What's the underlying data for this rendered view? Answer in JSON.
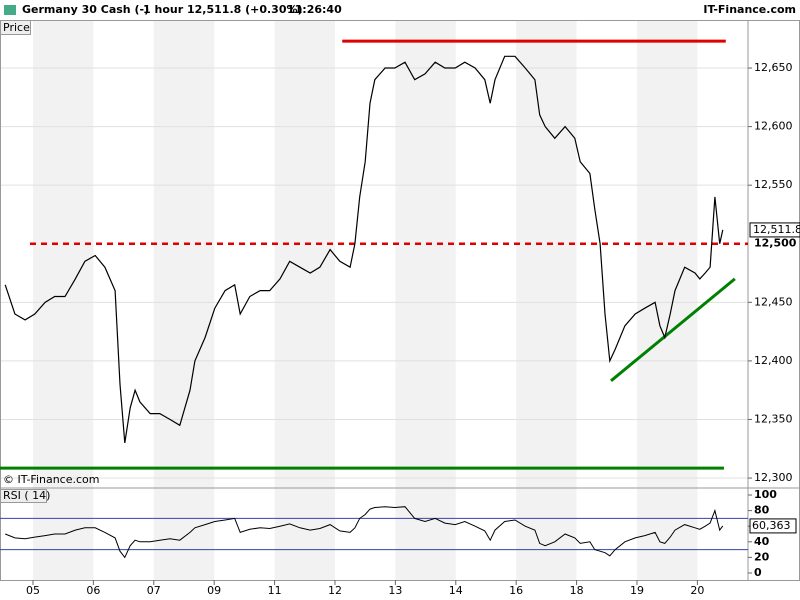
{
  "header": {
    "title": "Germany 30 Cash (-)",
    "interval": "1 hour",
    "quote": "12,511.8 (+0.30%)",
    "time": "11:26:40",
    "brand": "IT-Finance.com",
    "price_label": "Price",
    "copyright": "© IT-Finance.com"
  },
  "chart_data": [
    {
      "type": "line",
      "color": "#000000",
      "grid": true,
      "x": [
        -0.46,
        -0.3,
        -0.13,
        0.03,
        0.2,
        0.36,
        0.53,
        0.7,
        0.86,
        1.03,
        1.19,
        1.36,
        1.44,
        1.52,
        1.61,
        1.69,
        1.77,
        1.94,
        2.1,
        2.27,
        2.43,
        2.6,
        2.68,
        2.85,
        3.01,
        3.18,
        3.34,
        3.43,
        3.59,
        3.76,
        3.92,
        4.09,
        4.25,
        4.42,
        4.59,
        4.75,
        4.92,
        5.08,
        5.25,
        5.33,
        5.41,
        5.5,
        5.58,
        5.66,
        5.83,
        5.99,
        6.16,
        6.32,
        6.49,
        6.66,
        6.82,
        6.99,
        7.15,
        7.32,
        7.48,
        7.57,
        7.65,
        7.81,
        7.98,
        8.15,
        8.31,
        8.39,
        8.48,
        8.64,
        8.81,
        8.97,
        9.06,
        9.22,
        9.3,
        9.39,
        9.47,
        9.55,
        9.64,
        9.8,
        9.97,
        10.13,
        10.3,
        10.38,
        10.46,
        10.55,
        10.63,
        10.79,
        10.96,
        11.04,
        11.13,
        11.21,
        11.29,
        11.37,
        11.42
      ],
      "values": [
        12465,
        12440,
        12435,
        12440,
        12450,
        12455,
        12455,
        12470,
        12485,
        12490,
        12480,
        12460,
        12380,
        12330,
        12360,
        12375,
        12365,
        12355,
        12355,
        12350,
        12345,
        12375,
        12400,
        12420,
        12445,
        12460,
        12465,
        12440,
        12455,
        12460,
        12460,
        12470,
        12485,
        12480,
        12475,
        12480,
        12495,
        12485,
        12480,
        12500,
        12540,
        12570,
        12620,
        12640,
        12650,
        12650,
        12655,
        12640,
        12645,
        12655,
        12650,
        12650,
        12655,
        12650,
        12640,
        12620,
        12640,
        12660,
        12660,
        12650,
        12640,
        12610,
        12600,
        12590,
        12600,
        12590,
        12570,
        12560,
        12530,
        12500,
        12440,
        12400,
        12410,
        12430,
        12440,
        12445,
        12450,
        12430,
        12420,
        12440,
        12460,
        12480,
        12475,
        12470,
        12475,
        12480,
        12540,
        12500,
        12511.8
      ],
      "xlim": [
        -0.546,
        11.838
      ],
      "xticks": [
        {
          "value": 0,
          "label": "05"
        },
        {
          "value": 1,
          "label": "06"
        },
        {
          "value": 2,
          "label": "07"
        },
        {
          "value": 3,
          "label": "09"
        },
        {
          "value": 4,
          "label": "11"
        },
        {
          "value": 5,
          "label": "12"
        },
        {
          "value": 6,
          "label": "13"
        },
        {
          "value": 7,
          "label": "14"
        },
        {
          "value": 8,
          "label": "16"
        },
        {
          "value": 9,
          "label": "18"
        },
        {
          "value": 10,
          "label": "19"
        },
        {
          "value": 11,
          "label": "20"
        }
      ],
      "ylim": [
        12291.5,
        12691
      ],
      "yticks": [
        {
          "value": 12300,
          "label": "12,300"
        },
        {
          "value": 12350,
          "label": "12,350"
        },
        {
          "value": 12400,
          "label": "12,400"
        },
        {
          "value": 12450,
          "label": "12,450"
        },
        {
          "value": 12550,
          "label": "12,550"
        },
        {
          "value": 12600,
          "label": "12,600"
        },
        {
          "value": 12650,
          "label": "12,650"
        }
      ],
      "level": {
        "value": 12500,
        "label": "12,500",
        "color": "#e00000"
      },
      "last": {
        "value": 12511.8,
        "label": "12,511.8"
      },
      "lines": [
        {
          "x": [
            5.12,
            11.47
          ],
          "y": [
            12673,
            12673
          ],
          "color": "#e00000"
        },
        {
          "x": [
            -0.546,
            11.44
          ],
          "y": [
            12308.5,
            12308.5
          ],
          "color": "#008000"
        },
        {
          "x": [
            9.57,
            11.62
          ],
          "y": [
            12383,
            12470
          ],
          "color": "#008000"
        }
      ]
    },
    {
      "type": "line",
      "title": "RSI ( 14)",
      "color": "#000000",
      "x": [
        -0.46,
        -0.3,
        -0.13,
        0.03,
        0.2,
        0.36,
        0.53,
        0.7,
        0.86,
        1.03,
        1.19,
        1.36,
        1.44,
        1.52,
        1.61,
        1.69,
        1.77,
        1.94,
        2.1,
        2.27,
        2.43,
        2.6,
        2.68,
        2.85,
        3.01,
        3.18,
        3.34,
        3.43,
        3.59,
        3.76,
        3.92,
        4.09,
        4.25,
        4.42,
        4.59,
        4.75,
        4.92,
        5.08,
        5.25,
        5.33,
        5.41,
        5.5,
        5.58,
        5.66,
        5.83,
        5.99,
        6.16,
        6.32,
        6.49,
        6.66,
        6.82,
        6.99,
        7.15,
        7.32,
        7.48,
        7.57,
        7.65,
        7.81,
        7.98,
        8.15,
        8.31,
        8.39,
        8.48,
        8.64,
        8.81,
        8.97,
        9.06,
        9.22,
        9.3,
        9.39,
        9.47,
        9.55,
        9.64,
        9.8,
        9.97,
        10.13,
        10.3,
        10.38,
        10.46,
        10.55,
        10.63,
        10.79,
        10.96,
        11.04,
        11.13,
        11.21,
        11.29,
        11.37,
        11.42
      ],
      "values": [
        50,
        45,
        44,
        46,
        48,
        50,
        50,
        55,
        58,
        58,
        52,
        45,
        28,
        20,
        35,
        42,
        40,
        40,
        42,
        44,
        42,
        52,
        58,
        62,
        66,
        68,
        70,
        52,
        56,
        58,
        57,
        60,
        63,
        58,
        55,
        57,
        62,
        54,
        52,
        58,
        70,
        75,
        82,
        84,
        85,
        84,
        85,
        70,
        66,
        70,
        64,
        62,
        66,
        60,
        54,
        42,
        55,
        66,
        68,
        60,
        55,
        38,
        35,
        40,
        50,
        45,
        38,
        40,
        30,
        28,
        26,
        22,
        30,
        40,
        45,
        48,
        52,
        40,
        38,
        46,
        55,
        62,
        58,
        56,
        60,
        64,
        80,
        55,
        60.363
      ],
      "xlim": [
        -0.546,
        11.838
      ],
      "ylim": [
        -9,
        109
      ],
      "yticks": [
        0,
        20,
        40,
        60,
        80,
        100
      ],
      "bands": [
        30,
        70
      ],
      "last": {
        "value": 60.363,
        "label": "60,363"
      }
    }
  ]
}
